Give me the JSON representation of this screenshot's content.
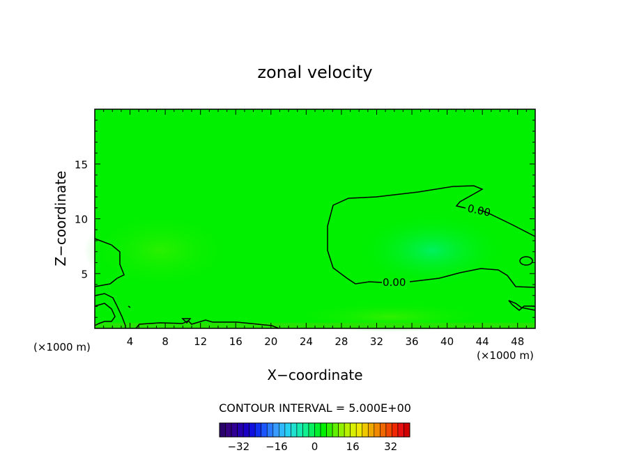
{
  "chart_data": {
    "type": "heatmap",
    "title": "zonal velocity",
    "xlabel": "X−coordinate",
    "ylabel": "Z−coordinate",
    "x_unit_left": "(×1000 m)",
    "x_unit_right": "(×1000 m)",
    "xlim": [
      0,
      50
    ],
    "ylim": [
      0,
      20
    ],
    "x_ticks": [
      4,
      8,
      12,
      16,
      20,
      24,
      28,
      32,
      36,
      40,
      44,
      48
    ],
    "y_ticks": [
      5,
      10,
      15
    ],
    "field_color": "#00f000",
    "contour_labels": [
      {
        "text": "0.00",
        "x": 43.5,
        "y": 10.5
      },
      {
        "text": "0.00",
        "x": 34.5,
        "y": 4.2
      }
    ],
    "contour_interval_text": "CONTOUR INTERVAL = 5.000E+00",
    "colorbar": {
      "range": [
        -40,
        40
      ],
      "tick_labels": [
        "−32",
        "−16",
        "0",
        "16",
        "32"
      ],
      "tick_values": [
        -32,
        -16,
        0,
        16,
        32
      ],
      "colors": [
        "#2a006a",
        "#35007f",
        "#300095",
        "#2500ad",
        "#1b00c5",
        "#0f10dd",
        "#1030f0",
        "#1a55ff",
        "#2a7aff",
        "#3a9bff",
        "#30b8ff",
        "#25d0f0",
        "#20e0d0",
        "#15eab0",
        "#10f090",
        "#08f060",
        "#00f030",
        "#00f000",
        "#30f000",
        "#60f000",
        "#90f000",
        "#b8f000",
        "#d8f000",
        "#f0e800",
        "#f0c800",
        "#f0a800",
        "#f08800",
        "#f06800",
        "#f04800",
        "#f02800",
        "#e81010",
        "#d00000"
      ]
    }
  }
}
